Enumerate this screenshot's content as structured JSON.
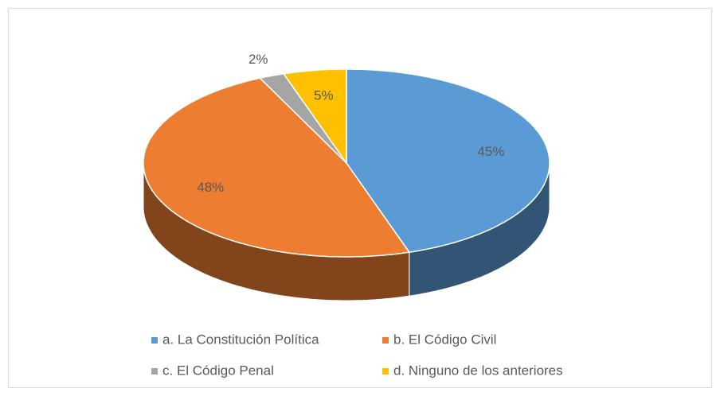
{
  "chart_data": {
    "type": "pie3d",
    "categories": [
      "a. La Constitución Política",
      "b. El Código Civil",
      "c. El Código Penal",
      "d. Ninguno de los anteriores"
    ],
    "values": [
      45,
      48,
      2,
      5
    ],
    "value_labels": [
      "45%",
      "48%",
      "2%",
      "5%"
    ],
    "colors": [
      "#5b9bd5",
      "#ed7d31",
      "#a5a5a5",
      "#ffc000"
    ],
    "legend": "bottom"
  }
}
